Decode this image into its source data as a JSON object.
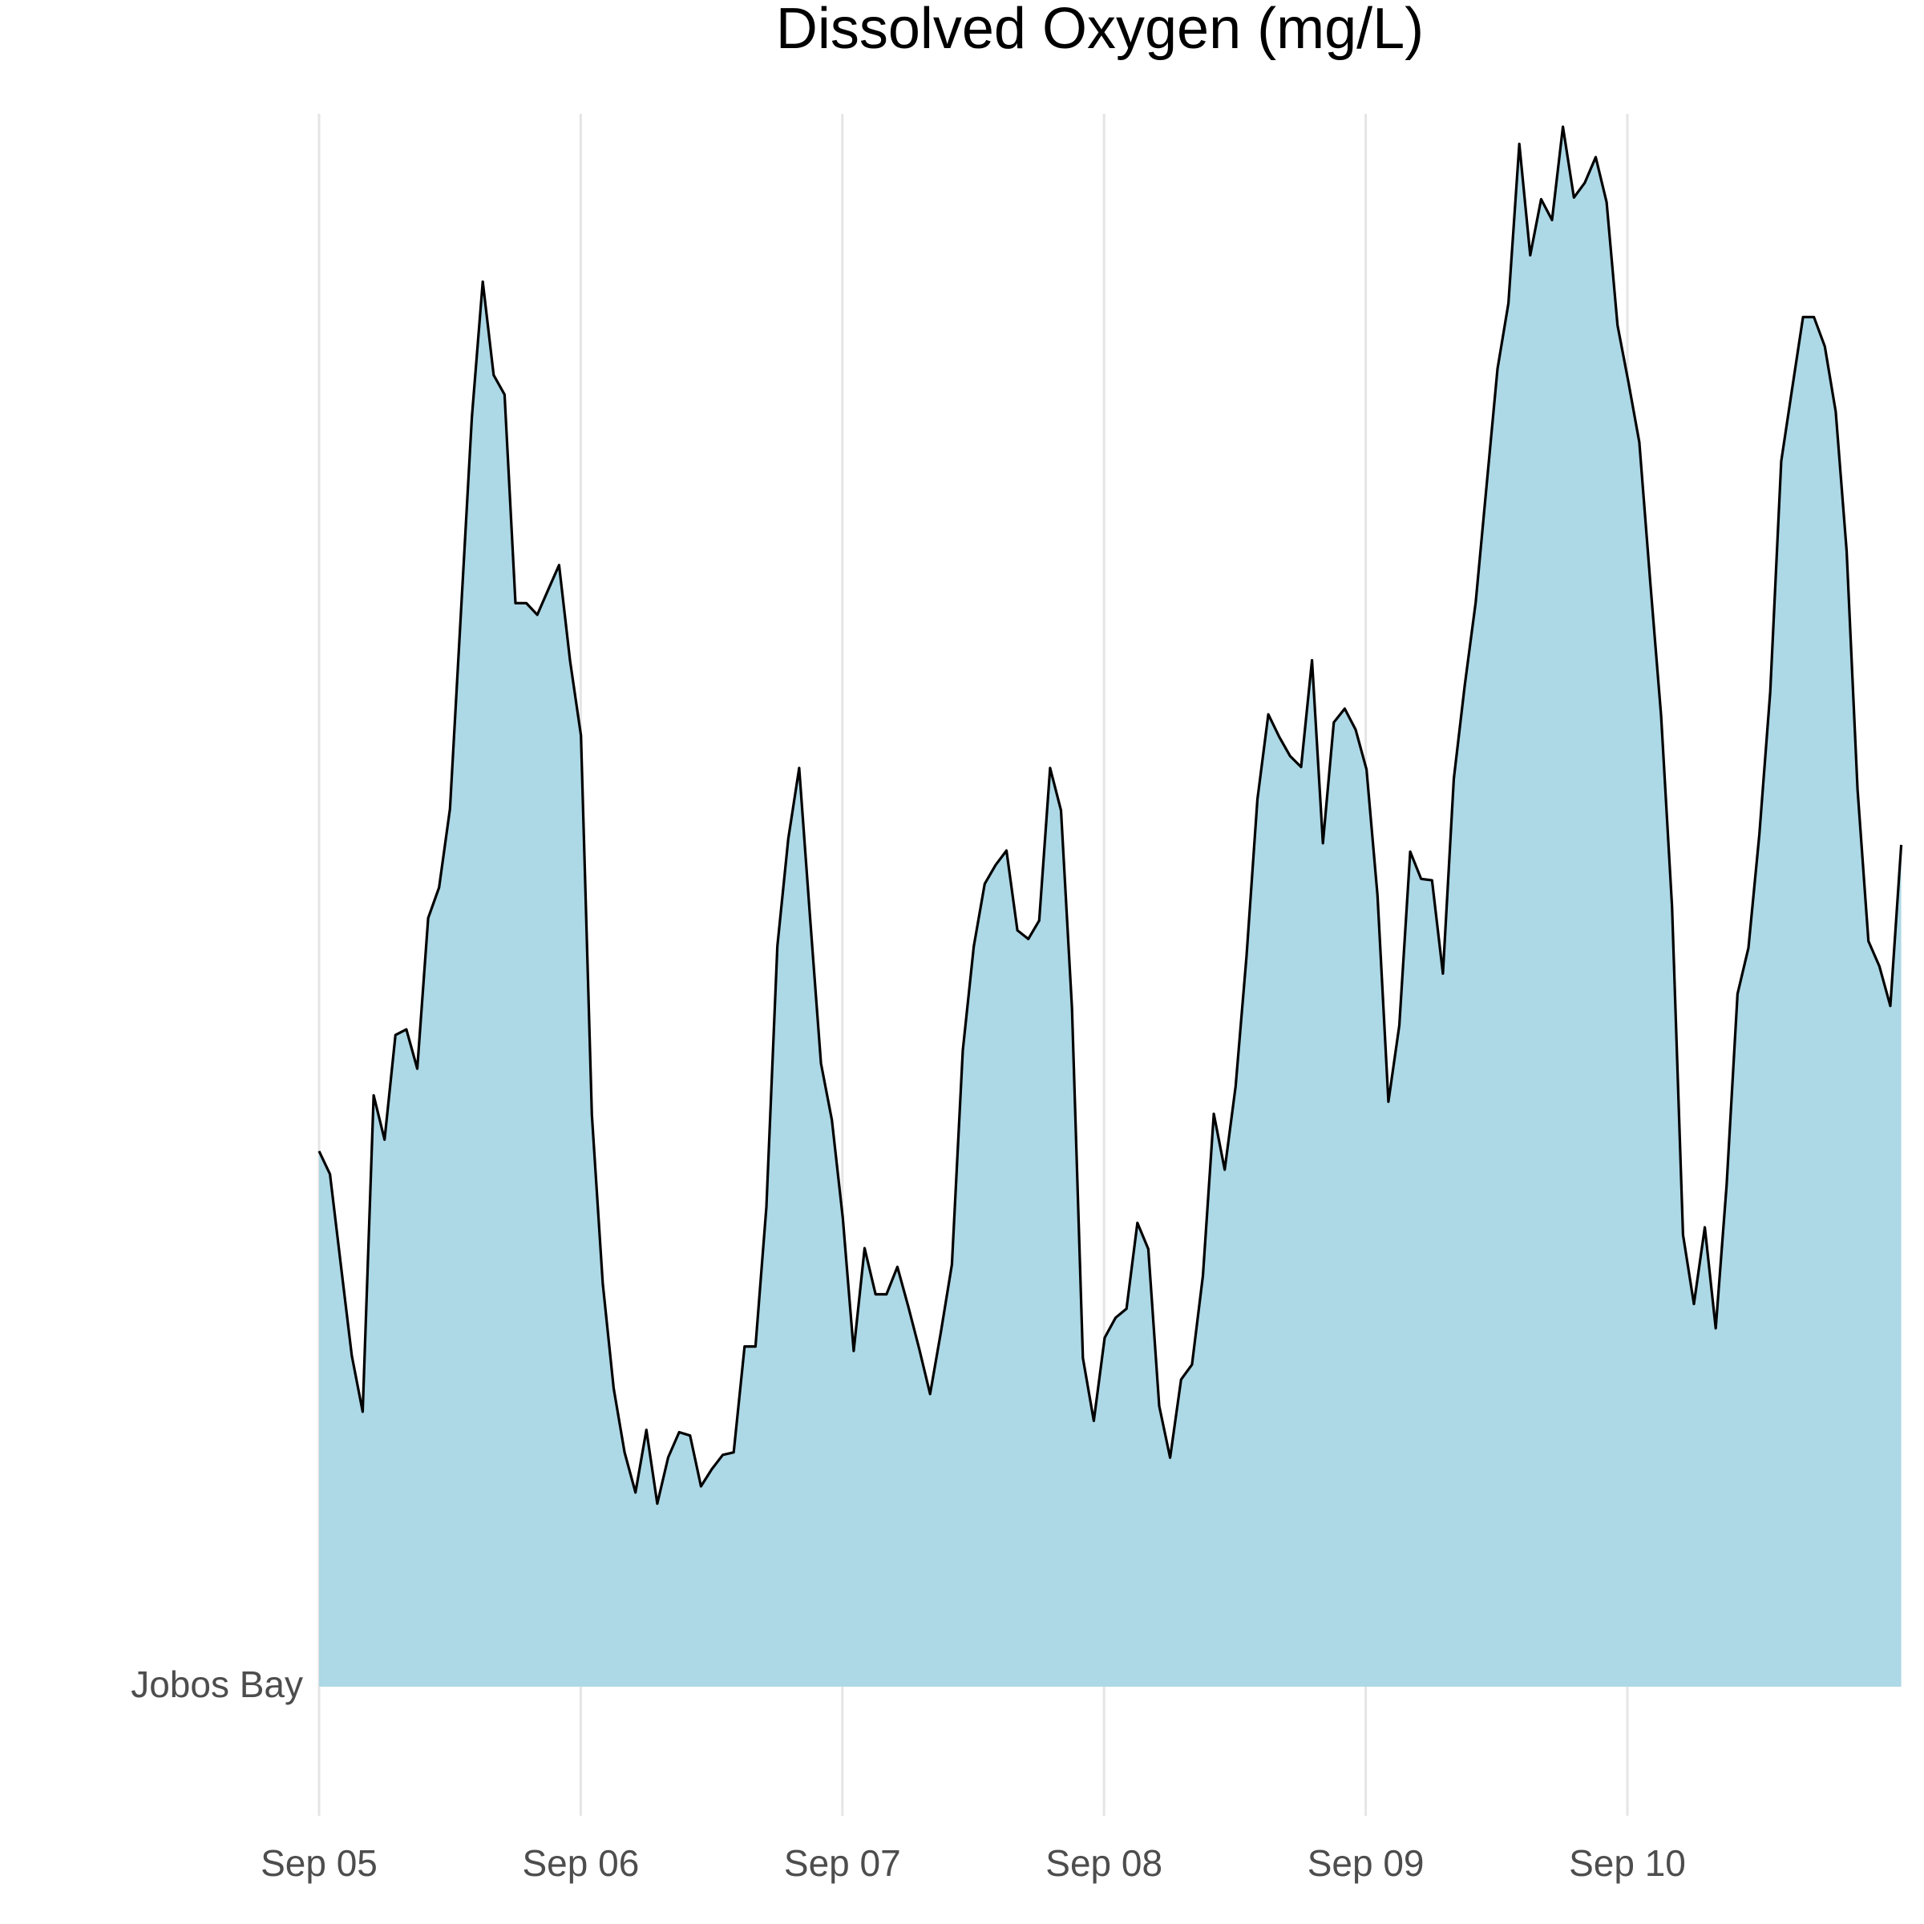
{
  "chart_data": {
    "type": "area",
    "title": "Dissolved Oxygen (mg/L)",
    "ylabel_category": "Jobos Bay",
    "xlabel": "",
    "ylabel": "",
    "x_tick_labels": [
      "Sep 05",
      "Sep 06",
      "Sep 07",
      "Sep 08",
      "Sep 09",
      "Sep 10"
    ],
    "x_range_days": [
      0,
      5.96
    ],
    "grid": "vertical only",
    "fill_color": "#add8e6",
    "line_color": "#000000",
    "series": [
      {
        "x_step_days": 0.0417,
        "values_relative_height": [
          0.3405,
          0.3259,
          0.2681,
          0.2106,
          0.1748,
          0.376,
          0.3478,
          0.4143,
          0.4179,
          0.3929,
          0.4887,
          0.5081,
          0.5581,
          0.6822,
          0.807,
          0.8933,
          0.8339,
          0.8215,
          0.6889,
          0.6889,
          0.6815,
          0.6974,
          0.7131,
          0.6523,
          0.6048,
          0.3636,
          0.2563,
          0.1897,
          0.149,
          0.1235,
          0.1633,
          0.1164,
          0.1458,
          0.1618,
          0.1597,
          0.1274,
          0.1384,
          0.1474,
          0.149,
          0.2163,
          0.2163,
          0.305,
          0.4709,
          0.5391,
          0.5841,
          0.4889,
          0.3963,
          0.3603,
          0.2981,
          0.2135,
          0.2788,
          0.2495,
          0.2495,
          0.2669,
          0.2417,
          0.2149,
          0.1861,
          0.2259,
          0.2684,
          0.4046,
          0.4707,
          0.5104,
          0.5224,
          0.5316,
          0.4809,
          0.4754,
          0.4871,
          0.5841,
          0.5572,
          0.4314,
          0.209,
          0.169,
          0.2219,
          0.2346,
          0.2403,
          0.2949,
          0.2783,
          0.1785,
          0.1456,
          0.1953,
          0.2048,
          0.2612,
          0.3642,
          0.3287,
          0.3816,
          0.4643,
          0.5641,
          0.6182,
          0.6038,
          0.5916,
          0.5847,
          0.6526,
          0.5363,
          0.6131,
          0.6218,
          0.6085,
          0.5832,
          0.5031,
          0.3719,
          0.4204,
          0.5309,
          0.5136,
          0.5127,
          0.4534,
          0.5773,
          0.6365,
          0.6895,
          0.7638,
          0.8379,
          0.8795,
          0.9809,
          0.9101,
          0.9457,
          0.9325,
          0.9918,
          0.9468,
          0.9562,
          0.9725,
          0.9438,
          0.8656,
          0.8294,
          0.7912,
          0.7026,
          0.6172,
          0.4961,
          0.2873,
          0.2433,
          0.2921,
          0.2279,
          0.319,
          0.4405,
          0.4697,
          0.5417,
          0.6325,
          0.7791,
          0.8252,
          0.8708,
          0.8708,
          0.8521,
          0.8106,
          0.7221,
          0.5706,
          0.474,
          0.458,
          0.4328,
          0.5352
        ]
      }
    ]
  }
}
